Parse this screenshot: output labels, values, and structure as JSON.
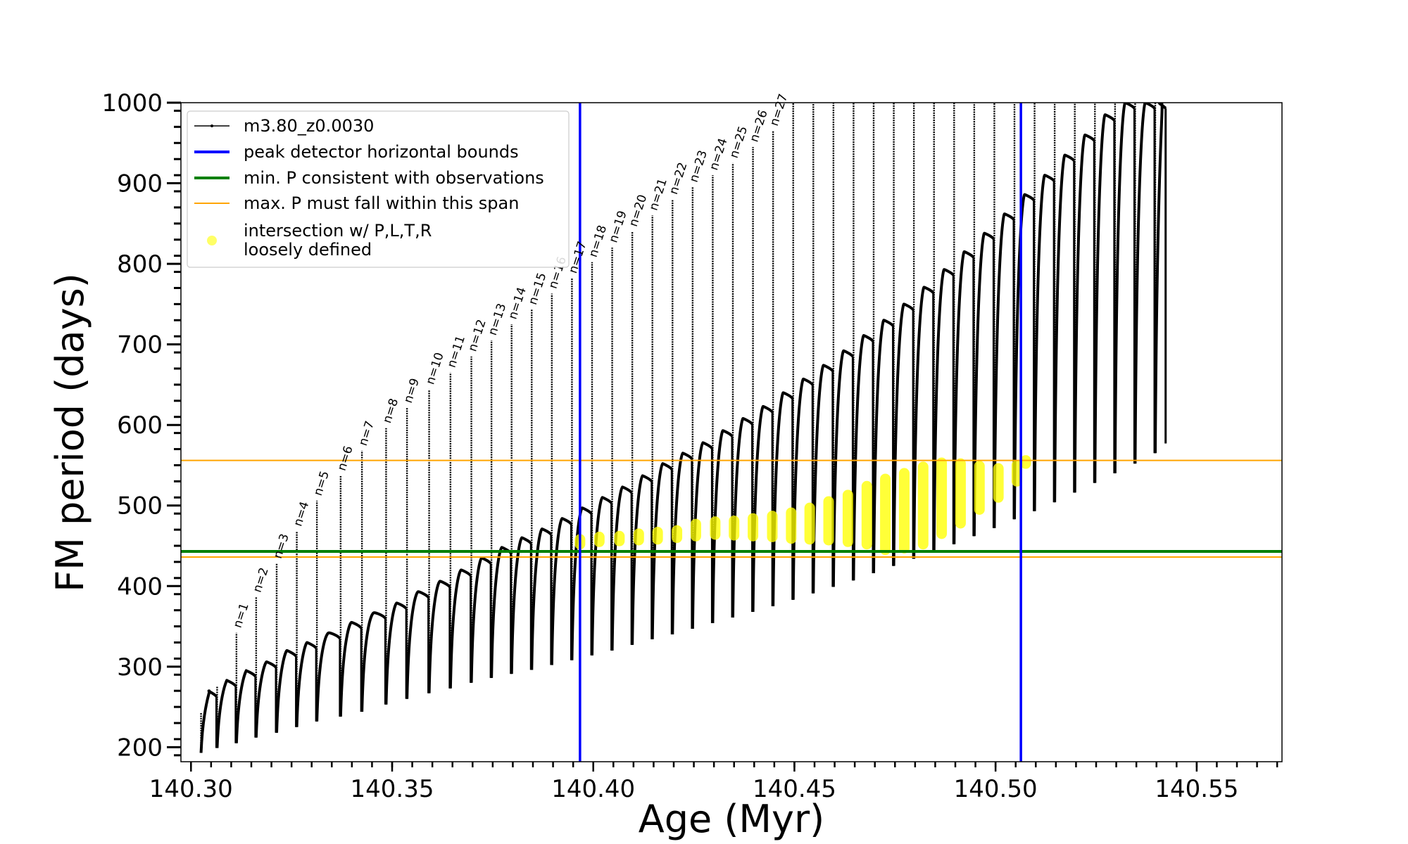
{
  "chart_data": {
    "type": "line",
    "xlabel": "Age (Myr)",
    "ylabel": "FM period (days)",
    "xlim": [
      140.2975,
      140.5712
    ],
    "ylim": [
      182,
      1000
    ],
    "x_ticks": [
      140.3,
      140.35,
      140.4,
      140.45,
      140.5,
      140.55
    ],
    "x_tick_labels": [
      "140.30",
      "140.35",
      "140.40",
      "140.45",
      "140.50",
      "140.55"
    ],
    "y_ticks": [
      200,
      300,
      400,
      500,
      600,
      700,
      800,
      900,
      1000
    ],
    "y_tick_labels": [
      "200",
      "300",
      "400",
      "500",
      "600",
      "700",
      "800",
      "900",
      "1000"
    ],
    "grid": false,
    "legend_position": "top-left",
    "legend": [
      {
        "label": "m3.80_z0.0030",
        "color": "#000000",
        "style": "line-with-dots"
      },
      {
        "label": "peak detector horizontal bounds",
        "color": "#0000ff",
        "style": "line"
      },
      {
        "label": "min. P consistent with observations",
        "color": "#008000",
        "style": "line"
      },
      {
        "label": "max. P must fall within this span",
        "color": "#ffa500",
        "style": "line"
      },
      {
        "label": "intersection w/ P,L,T,R\nloosely defined",
        "color": "#ffff00",
        "style": "marker"
      }
    ],
    "vertical_lines": [
      {
        "x": 140.3967,
        "color": "#0000ff"
      },
      {
        "x": 140.5063,
        "color": "#0000ff"
      }
    ],
    "horizontal_lines": [
      {
        "y": 443,
        "color": "#008000"
      },
      {
        "y": 436,
        "color": "#ffa500"
      },
      {
        "y": 556,
        "color": "#ffa500"
      }
    ],
    "pulse_labels": [
      "n=1",
      "n=2",
      "n=3",
      "n=4",
      "n=5",
      "n=6",
      "n=7",
      "n=8",
      "n=9",
      "n=10",
      "n=11",
      "n=12",
      "n=13",
      "n=14",
      "n=15",
      "n=16",
      "n=17",
      "n=18",
      "n=19",
      "n=20",
      "n=21",
      "n=22",
      "n=23",
      "n=24",
      "n=25",
      "n=26",
      "n=27"
    ],
    "series": [
      {
        "name": "m3.80_z0.0030",
        "color": "#000000",
        "pulses": [
          {
            "x0": 140.3025,
            "x1": 140.3035,
            "base": 193,
            "top": 243,
            "max": 270
          },
          {
            "x0": 140.3065,
            "x1": 140.3078,
            "base": 199,
            "top": 275,
            "max": 283
          },
          {
            "x0": 140.3113,
            "x1": 140.3123,
            "base": 205,
            "top": 342,
            "max": 295
          },
          {
            "x0": 140.3162,
            "x1": 140.3172,
            "base": 212,
            "top": 386,
            "max": 306
          },
          {
            "x0": 140.3213,
            "x1": 140.3223,
            "base": 218,
            "top": 428,
            "max": 320
          },
          {
            "x0": 140.3263,
            "x1": 140.3273,
            "base": 225,
            "top": 468,
            "max": 330
          },
          {
            "x0": 140.3313,
            "x1": 140.3323,
            "base": 232,
            "top": 506,
            "max": 342
          },
          {
            "x0": 140.3372,
            "x1": 140.3383,
            "base": 238,
            "top": 537,
            "max": 355
          },
          {
            "x0": 140.3425,
            "x1": 140.3435,
            "base": 244,
            "top": 568,
            "max": 367
          },
          {
            "x0": 140.3485,
            "x1": 140.3495,
            "base": 253,
            "top": 596,
            "max": 379
          },
          {
            "x0": 140.3537,
            "x1": 140.3547,
            "base": 260,
            "top": 621,
            "max": 393
          },
          {
            "x0": 140.3592,
            "x1": 140.3602,
            "base": 267,
            "top": 644,
            "max": 406
          },
          {
            "x0": 140.3645,
            "x1": 140.3655,
            "base": 273,
            "top": 665,
            "max": 420
          },
          {
            "x0": 140.3697,
            "x1": 140.3707,
            "base": 280,
            "top": 685,
            "max": 435
          },
          {
            "x0": 140.3747,
            "x1": 140.3757,
            "base": 286,
            "top": 705,
            "max": 448
          },
          {
            "x0": 140.3797,
            "x1": 140.3807,
            "base": 291,
            "top": 725,
            "max": 460
          },
          {
            "x0": 140.3847,
            "x1": 140.3857,
            "base": 296,
            "top": 743,
            "max": 471
          },
          {
            "x0": 140.3897,
            "x1": 140.3907,
            "base": 302,
            "top": 763,
            "max": 484
          },
          {
            "x0": 140.3947,
            "x1": 140.3957,
            "base": 308,
            "top": 782,
            "max": 497
          },
          {
            "x0": 140.3997,
            "x1": 140.4007,
            "base": 314,
            "top": 802,
            "max": 510
          },
          {
            "x0": 140.4047,
            "x1": 140.4057,
            "base": 320,
            "top": 820,
            "max": 523
          },
          {
            "x0": 140.4097,
            "x1": 140.4107,
            "base": 327,
            "top": 840,
            "max": 537
          },
          {
            "x0": 140.4147,
            "x1": 140.4157,
            "base": 334,
            "top": 860,
            "max": 552
          },
          {
            "x0": 140.4197,
            "x1": 140.4207,
            "base": 340,
            "top": 880,
            "max": 565
          },
          {
            "x0": 140.4247,
            "x1": 140.4257,
            "base": 347,
            "top": 895,
            "max": 578
          },
          {
            "x0": 140.4297,
            "x1": 140.4307,
            "base": 354,
            "top": 910,
            "max": 593
          },
          {
            "x0": 140.4347,
            "x1": 140.4357,
            "base": 361,
            "top": 925,
            "max": 608
          },
          {
            "x0": 140.4397,
            "x1": 140.4407,
            "base": 368,
            "top": 945,
            "max": 623
          },
          {
            "x0": 140.4447,
            "x1": 140.4457,
            "base": 375,
            "top": 965,
            "max": 640
          },
          {
            "x0": 140.4497,
            "x1": 140.4507,
            "base": 383,
            "top": 1000,
            "max": 657
          },
          {
            "x0": 140.4547,
            "x1": 140.4557,
            "base": 391,
            "top": 1000,
            "max": 674
          },
          {
            "x0": 140.4597,
            "x1": 140.4607,
            "base": 399,
            "top": 1000,
            "max": 692
          },
          {
            "x0": 140.4647,
            "x1": 140.4657,
            "base": 407,
            "top": 1000,
            "max": 711
          },
          {
            "x0": 140.4697,
            "x1": 140.4707,
            "base": 416,
            "top": 1000,
            "max": 730
          },
          {
            "x0": 140.4747,
            "x1": 140.4757,
            "base": 425,
            "top": 1000,
            "max": 750
          },
          {
            "x0": 140.4797,
            "x1": 140.4807,
            "base": 434,
            "top": 1000,
            "max": 771
          },
          {
            "x0": 140.4847,
            "x1": 140.4857,
            "base": 443,
            "top": 1000,
            "max": 793
          },
          {
            "x0": 140.4897,
            "x1": 140.4907,
            "base": 452,
            "top": 1000,
            "max": 815
          },
          {
            "x0": 140.4947,
            "x1": 140.4957,
            "base": 462,
            "top": 1000,
            "max": 838
          },
          {
            "x0": 140.4997,
            "x1": 140.5007,
            "base": 472,
            "top": 1000,
            "max": 862
          },
          {
            "x0": 140.5047,
            "x1": 140.5057,
            "base": 483,
            "top": 1000,
            "max": 886
          },
          {
            "x0": 140.5097,
            "x1": 140.5107,
            "base": 493,
            "top": 1000,
            "max": 910
          },
          {
            "x0": 140.5147,
            "x1": 140.5157,
            "base": 504,
            "top": 1000,
            "max": 935
          },
          {
            "x0": 140.5197,
            "x1": 140.5207,
            "base": 516,
            "top": 1000,
            "max": 960
          },
          {
            "x0": 140.5247,
            "x1": 140.5257,
            "base": 528,
            "top": 1000,
            "max": 985
          },
          {
            "x0": 140.5297,
            "x1": 140.5307,
            "base": 540,
            "top": 1000,
            "max": 1000
          },
          {
            "x0": 140.5347,
            "x1": 140.5357,
            "base": 552,
            "top": 1000,
            "max": 1000
          },
          {
            "x0": 140.5397,
            "x1": 140.5407,
            "base": 565,
            "top": 1000,
            "max": 1000
          }
        ]
      },
      {
        "name": "intersection w/ P,L,T,R loosely defined",
        "color": "#ffff00",
        "points": [
          {
            "x": 140.3967,
            "ylo": 452,
            "yhi": 458
          },
          {
            "x": 140.4015,
            "ylo": 455,
            "yhi": 461
          },
          {
            "x": 140.4065,
            "ylo": 456,
            "yhi": 462
          },
          {
            "x": 140.4113,
            "ylo": 457,
            "yhi": 465
          },
          {
            "x": 140.416,
            "ylo": 458,
            "yhi": 467
          },
          {
            "x": 140.4208,
            "ylo": 460,
            "yhi": 469
          },
          {
            "x": 140.4255,
            "ylo": 462,
            "yhi": 477
          },
          {
            "x": 140.4303,
            "ylo": 464,
            "yhi": 480
          },
          {
            "x": 140.435,
            "ylo": 463,
            "yhi": 481
          },
          {
            "x": 140.4397,
            "ylo": 462,
            "yhi": 484
          },
          {
            "x": 140.4445,
            "ylo": 461,
            "yhi": 487
          },
          {
            "x": 140.4492,
            "ylo": 459,
            "yhi": 491
          },
          {
            "x": 140.4538,
            "ylo": 458,
            "yhi": 497
          },
          {
            "x": 140.4585,
            "ylo": 457,
            "yhi": 505
          },
          {
            "x": 140.4633,
            "ylo": 455,
            "yhi": 513
          },
          {
            "x": 140.468,
            "ylo": 452,
            "yhi": 524
          },
          {
            "x": 140.4726,
            "ylo": 445,
            "yhi": 533
          },
          {
            "x": 140.4773,
            "ylo": 447,
            "yhi": 540
          },
          {
            "x": 140.482,
            "ylo": 452,
            "yhi": 548
          },
          {
            "x": 140.4866,
            "ylo": 465,
            "yhi": 553
          },
          {
            "x": 140.4913,
            "ylo": 478,
            "yhi": 552
          },
          {
            "x": 140.496,
            "ylo": 495,
            "yhi": 549
          },
          {
            "x": 140.5007,
            "ylo": 510,
            "yhi": 546
          },
          {
            "x": 140.5053,
            "ylo": 530,
            "yhi": 550
          },
          {
            "x": 140.5075,
            "ylo": 552,
            "yhi": 556
          }
        ]
      }
    ]
  }
}
